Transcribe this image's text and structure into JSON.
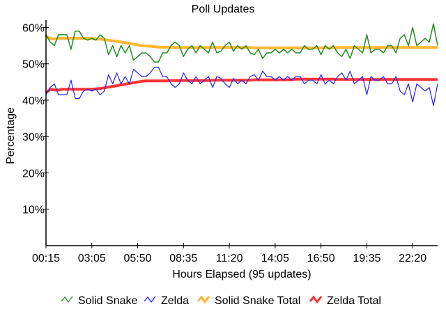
{
  "chart_data": {
    "type": "line",
    "title": "Poll Updates",
    "xlabel": "Hours Elapsed (95 updates)",
    "ylabel": "Percentage",
    "ylim": [
      0,
      62
    ],
    "yticks": [
      10,
      20,
      30,
      40,
      50,
      60
    ],
    "ytick_labels": [
      "10%",
      "20%",
      "30%",
      "40%",
      "50%",
      "60%"
    ],
    "xtick_labels": [
      "00:15",
      "03:05",
      "05:50",
      "08:35",
      "11:20",
      "14:05",
      "16:50",
      "19:35",
      "22:20"
    ],
    "xtick_index": [
      0,
      11,
      22,
      33,
      44,
      55,
      66,
      77,
      88
    ],
    "n_points": 95,
    "legend_position": "bottom",
    "series": [
      {
        "name": "Solid Snake",
        "color": "#228b22",
        "width": 1.5,
        "values": [
          58,
          56,
          55,
          58,
          58,
          58,
          54,
          59,
          59,
          57,
          56.5,
          57,
          56.5,
          58,
          57,
          52.5,
          55,
          52,
          55,
          53,
          55,
          51,
          52,
          53,
          53,
          52,
          50.5,
          50.5,
          53,
          53,
          55,
          56,
          55,
          52,
          54,
          55,
          53,
          55,
          54,
          53,
          56,
          53,
          53.5,
          55,
          56,
          53.5,
          55,
          54,
          55,
          53,
          52.5,
          54,
          51.5,
          53,
          53,
          54,
          53,
          54,
          53,
          54,
          53,
          53,
          55,
          54,
          54,
          55,
          52.5,
          55,
          54,
          55,
          53,
          52,
          54,
          51.5,
          55,
          54,
          53,
          58,
          53,
          54,
          54,
          53,
          55,
          55,
          53,
          57,
          58,
          55,
          60,
          55,
          56,
          57,
          56,
          61,
          55
        ]
      },
      {
        "name": "Zelda",
        "color": "#2020ff",
        "width": 1.2,
        "values": [
          41.5,
          43.5,
          44.5,
          41.5,
          41.5,
          41.5,
          45.5,
          40.5,
          40.5,
          42.5,
          43,
          42.5,
          43,
          41.5,
          42.5,
          47,
          44.5,
          47.5,
          44.5,
          46.5,
          44.5,
          48.5,
          47.5,
          46.5,
          46.5,
          47.5,
          49,
          49,
          46.5,
          46.5,
          44.5,
          43.5,
          44.5,
          47.5,
          45.5,
          44.5,
          46.5,
          44.5,
          45.5,
          46.5,
          43.5,
          46.5,
          46,
          44.5,
          43.5,
          46,
          44.5,
          45.5,
          44.5,
          46.5,
          47,
          45.5,
          48,
          46.5,
          46.5,
          45.5,
          46.5,
          45.5,
          46.5,
          45.5,
          46.5,
          46.5,
          44.5,
          45.5,
          45.5,
          44.5,
          47,
          44.5,
          45.5,
          44.5,
          46.5,
          47.5,
          45.5,
          48,
          44.5,
          45.5,
          46.5,
          41.5,
          46.5,
          45.5,
          45.5,
          46.5,
          44.5,
          44.5,
          46.5,
          42.5,
          41.5,
          44.5,
          39.5,
          44.5,
          43.5,
          42.5,
          43.5,
          38.5,
          44.5
        ]
      },
      {
        "name": "Solid Snake Total",
        "color": "#ffb733",
        "width": 4,
        "values": [
          57.5,
          57,
          56.8,
          57,
          57,
          57,
          57,
          57,
          57,
          57,
          57,
          57,
          56.8,
          56.8,
          56.6,
          56.5,
          56.3,
          56.2,
          56,
          55.8,
          55.6,
          55.4,
          55.2,
          55,
          54.9,
          54.8,
          54.7,
          54.6,
          54.6,
          54.6,
          54.5,
          54.5,
          54.5,
          54.5,
          54.5,
          54.5,
          54.5,
          54.5,
          54.5,
          54.5,
          54.5,
          54.5,
          54.5,
          54.5,
          54.5,
          54.5,
          54.5,
          54.5,
          54.5,
          54.5,
          54.4,
          54.4,
          54.4,
          54.4,
          54.4,
          54.4,
          54.4,
          54.4,
          54.4,
          54.4,
          54.4,
          54.4,
          54.4,
          54.4,
          54.4,
          54.4,
          54.4,
          54.4,
          54.4,
          54.4,
          54.5,
          54.5,
          54.5,
          54.5,
          54.5,
          54.5,
          54.5,
          54.5,
          54.5,
          54.5,
          54.5,
          54.5,
          54.5,
          54.5,
          54.5,
          54.5,
          54.5,
          54.5,
          54.5,
          54.5,
          54.5,
          54.5,
          54.5,
          54.5,
          54.5
        ]
      },
      {
        "name": "Zelda Total",
        "color": "#ff3333",
        "width": 4,
        "values": [
          42,
          43,
          42.8,
          42.8,
          43,
          43,
          43,
          43,
          43,
          43,
          43,
          43,
          43.1,
          43.2,
          43.4,
          43.6,
          43.8,
          44,
          44.2,
          44.4,
          44.6,
          44.8,
          45,
          45.2,
          45.3,
          45.3,
          45.3,
          45.3,
          45.3,
          45.3,
          45.4,
          45.4,
          45.4,
          45.4,
          45.4,
          45.4,
          45.4,
          45.4,
          45.4,
          45.4,
          45.5,
          45.5,
          45.5,
          45.5,
          45.5,
          45.5,
          45.5,
          45.5,
          45.5,
          45.5,
          45.6,
          45.6,
          45.6,
          45.6,
          45.6,
          45.6,
          45.6,
          45.6,
          45.6,
          45.6,
          45.8,
          45.8,
          45.8,
          45.8,
          45.8,
          45.8,
          45.8,
          45.8,
          45.8,
          45.8,
          45.7,
          45.7,
          45.7,
          45.7,
          45.7,
          45.7,
          45.7,
          45.7,
          45.7,
          45.7,
          45.7,
          45.7,
          45.7,
          45.7,
          45.7,
          45.7,
          45.7,
          45.7,
          45.7,
          45.7,
          45.7,
          45.7,
          45.7,
          45.7,
          45.7
        ]
      }
    ]
  }
}
